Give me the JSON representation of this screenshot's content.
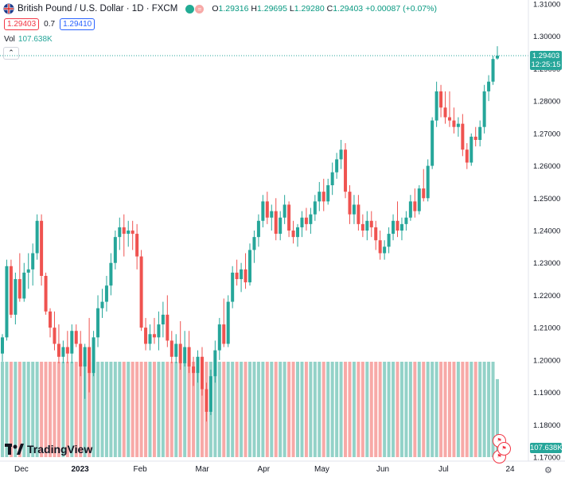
{
  "header": {
    "title": "British Pound / U.S. Dollar · 1D · FXCM",
    "ohlc": {
      "o_label": "O",
      "o": "1.29316",
      "h_label": "H",
      "h": "1.29695",
      "l_label": "L",
      "l": "1.29280",
      "c_label": "C",
      "c": "1.29403",
      "change": "+0.00087 (+0.07%)"
    }
  },
  "trade": {
    "sell_price": "1.29403",
    "spread": "0.7",
    "buy_price": "1.29410"
  },
  "volume": {
    "label": "Vol",
    "value": "107.638K"
  },
  "price_axis": {
    "labels": [
      "1.31000",
      "1.30000",
      "1.29000",
      "1.28000",
      "1.27000",
      "1.26000",
      "1.25000",
      "1.24000",
      "1.23000",
      "1.22000",
      "1.21000",
      "1.20000",
      "1.19000",
      "1.18000",
      "1.17000"
    ],
    "current_price": "1.29403",
    "countdown": "12:25:15",
    "volume_tag": "107.638K"
  },
  "time_axis": {
    "labels": [
      "Dec",
      "2023",
      "Feb",
      "Mar",
      "Apr",
      "May",
      "Jun",
      "Jul",
      "24"
    ]
  },
  "branding": {
    "logo_text": "TradingView"
  },
  "colors": {
    "up": "#26a69a",
    "down": "#ef5350",
    "vol_up": "#93d2c8",
    "vol_down": "#f7a9a7"
  },
  "chart_data": {
    "type": "candlestick",
    "symbol": "British Pound / U.S. Dollar",
    "interval": "1D",
    "ylim": [
      1.17,
      1.31
    ],
    "candles": [
      {
        "o": 1.202,
        "h": 1.208,
        "l": 1.1995,
        "c": 1.207
      },
      {
        "o": 1.207,
        "h": 1.231,
        "l": 1.206,
        "c": 1.229
      },
      {
        "o": 1.229,
        "h": 1.231,
        "l": 1.213,
        "c": 1.214
      },
      {
        "o": 1.214,
        "h": 1.227,
        "l": 1.211,
        "c": 1.225
      },
      {
        "o": 1.225,
        "h": 1.233,
        "l": 1.218,
        "c": 1.219
      },
      {
        "o": 1.219,
        "h": 1.23,
        "l": 1.218,
        "c": 1.227
      },
      {
        "o": 1.227,
        "h": 1.233,
        "l": 1.222,
        "c": 1.228
      },
      {
        "o": 1.228,
        "h": 1.236,
        "l": 1.223,
        "c": 1.233
      },
      {
        "o": 1.233,
        "h": 1.245,
        "l": 1.231,
        "c": 1.243
      },
      {
        "o": 1.243,
        "h": 1.245,
        "l": 1.223,
        "c": 1.226
      },
      {
        "o": 1.226,
        "h": 1.227,
        "l": 1.214,
        "c": 1.215
      },
      {
        "o": 1.215,
        "h": 1.216,
        "l": 1.207,
        "c": 1.21
      },
      {
        "o": 1.21,
        "h": 1.215,
        "l": 1.203,
        "c": 1.205
      },
      {
        "o": 1.205,
        "h": 1.211,
        "l": 1.199,
        "c": 1.201
      },
      {
        "o": 1.201,
        "h": 1.206,
        "l": 1.199,
        "c": 1.204
      },
      {
        "o": 1.204,
        "h": 1.209,
        "l": 1.199,
        "c": 1.202
      },
      {
        "o": 1.202,
        "h": 1.211,
        "l": 1.199,
        "c": 1.209
      },
      {
        "o": 1.209,
        "h": 1.211,
        "l": 1.204,
        "c": 1.205
      },
      {
        "o": 1.205,
        "h": 1.209,
        "l": 1.195,
        "c": 1.198
      },
      {
        "o": 1.198,
        "h": 1.205,
        "l": 1.188,
        "c": 1.204
      },
      {
        "o": 1.204,
        "h": 1.213,
        "l": 1.19,
        "c": 1.196
      },
      {
        "o": 1.196,
        "h": 1.209,
        "l": 1.195,
        "c": 1.207
      },
      {
        "o": 1.207,
        "h": 1.22,
        "l": 1.204,
        "c": 1.216
      },
      {
        "o": 1.216,
        "h": 1.222,
        "l": 1.213,
        "c": 1.218
      },
      {
        "o": 1.218,
        "h": 1.226,
        "l": 1.215,
        "c": 1.223
      },
      {
        "o": 1.223,
        "h": 1.233,
        "l": 1.22,
        "c": 1.23
      },
      {
        "o": 1.23,
        "h": 1.24,
        "l": 1.228,
        "c": 1.238
      },
      {
        "o": 1.238,
        "h": 1.244,
        "l": 1.234,
        "c": 1.241
      },
      {
        "o": 1.241,
        "h": 1.245,
        "l": 1.232,
        "c": 1.239
      },
      {
        "o": 1.239,
        "h": 1.243,
        "l": 1.235,
        "c": 1.24
      },
      {
        "o": 1.24,
        "h": 1.243,
        "l": 1.234,
        "c": 1.239
      },
      {
        "o": 1.239,
        "h": 1.242,
        "l": 1.228,
        "c": 1.232
      },
      {
        "o": 1.232,
        "h": 1.234,
        "l": 1.209,
        "c": 1.21
      },
      {
        "o": 1.21,
        "h": 1.213,
        "l": 1.203,
        "c": 1.205
      },
      {
        "o": 1.205,
        "h": 1.211,
        "l": 1.203,
        "c": 1.208
      },
      {
        "o": 1.208,
        "h": 1.213,
        "l": 1.205,
        "c": 1.207
      },
      {
        "o": 1.207,
        "h": 1.215,
        "l": 1.203,
        "c": 1.211
      },
      {
        "o": 1.211,
        "h": 1.218,
        "l": 1.207,
        "c": 1.214
      },
      {
        "o": 1.214,
        "h": 1.22,
        "l": 1.204,
        "c": 1.206
      },
      {
        "o": 1.206,
        "h": 1.209,
        "l": 1.199,
        "c": 1.201
      },
      {
        "o": 1.201,
        "h": 1.208,
        "l": 1.199,
        "c": 1.205
      },
      {
        "o": 1.205,
        "h": 1.212,
        "l": 1.197,
        "c": 1.199
      },
      {
        "o": 1.199,
        "h": 1.209,
        "l": 1.198,
        "c": 1.204
      },
      {
        "o": 1.204,
        "h": 1.209,
        "l": 1.196,
        "c": 1.198
      },
      {
        "o": 1.198,
        "h": 1.201,
        "l": 1.192,
        "c": 1.196
      },
      {
        "o": 1.196,
        "h": 1.203,
        "l": 1.193,
        "c": 1.201
      },
      {
        "o": 1.201,
        "h": 1.204,
        "l": 1.189,
        "c": 1.191
      },
      {
        "o": 1.191,
        "h": 1.193,
        "l": 1.181,
        "c": 1.184
      },
      {
        "o": 1.184,
        "h": 1.197,
        "l": 1.183,
        "c": 1.195
      },
      {
        "o": 1.195,
        "h": 1.206,
        "l": 1.193,
        "c": 1.203
      },
      {
        "o": 1.203,
        "h": 1.213,
        "l": 1.2,
        "c": 1.211
      },
      {
        "o": 1.211,
        "h": 1.219,
        "l": 1.204,
        "c": 1.205
      },
      {
        "o": 1.205,
        "h": 1.22,
        "l": 1.204,
        "c": 1.218
      },
      {
        "o": 1.218,
        "h": 1.229,
        "l": 1.216,
        "c": 1.227
      },
      {
        "o": 1.227,
        "h": 1.231,
        "l": 1.223,
        "c": 1.225
      },
      {
        "o": 1.225,
        "h": 1.23,
        "l": 1.221,
        "c": 1.228
      },
      {
        "o": 1.228,
        "h": 1.233,
        "l": 1.222,
        "c": 1.224
      },
      {
        "o": 1.224,
        "h": 1.236,
        "l": 1.223,
        "c": 1.234
      },
      {
        "o": 1.234,
        "h": 1.24,
        "l": 1.23,
        "c": 1.238
      },
      {
        "o": 1.238,
        "h": 1.245,
        "l": 1.235,
        "c": 1.243
      },
      {
        "o": 1.243,
        "h": 1.251,
        "l": 1.241,
        "c": 1.249
      },
      {
        "o": 1.249,
        "h": 1.252,
        "l": 1.242,
        "c": 1.244
      },
      {
        "o": 1.244,
        "h": 1.248,
        "l": 1.24,
        "c": 1.246
      },
      {
        "o": 1.246,
        "h": 1.25,
        "l": 1.237,
        "c": 1.239
      },
      {
        "o": 1.239,
        "h": 1.246,
        "l": 1.237,
        "c": 1.244
      },
      {
        "o": 1.244,
        "h": 1.251,
        "l": 1.242,
        "c": 1.248
      },
      {
        "o": 1.248,
        "h": 1.249,
        "l": 1.238,
        "c": 1.24
      },
      {
        "o": 1.24,
        "h": 1.243,
        "l": 1.236,
        "c": 1.238
      },
      {
        "o": 1.238,
        "h": 1.242,
        "l": 1.235,
        "c": 1.241
      },
      {
        "o": 1.241,
        "h": 1.246,
        "l": 1.238,
        "c": 1.244
      },
      {
        "o": 1.244,
        "h": 1.247,
        "l": 1.24,
        "c": 1.242
      },
      {
        "o": 1.242,
        "h": 1.247,
        "l": 1.239,
        "c": 1.245
      },
      {
        "o": 1.245,
        "h": 1.251,
        "l": 1.243,
        "c": 1.249
      },
      {
        "o": 1.249,
        "h": 1.255,
        "l": 1.246,
        "c": 1.252
      },
      {
        "o": 1.252,
        "h": 1.256,
        "l": 1.246,
        "c": 1.249
      },
      {
        "o": 1.249,
        "h": 1.256,
        "l": 1.248,
        "c": 1.254
      },
      {
        "o": 1.254,
        "h": 1.261,
        "l": 1.251,
        "c": 1.258
      },
      {
        "o": 1.258,
        "h": 1.264,
        "l": 1.256,
        "c": 1.262
      },
      {
        "o": 1.262,
        "h": 1.268,
        "l": 1.259,
        "c": 1.265
      },
      {
        "o": 1.265,
        "h": 1.267,
        "l": 1.25,
        "c": 1.252
      },
      {
        "o": 1.252,
        "h": 1.254,
        "l": 1.242,
        "c": 1.245
      },
      {
        "o": 1.245,
        "h": 1.251,
        "l": 1.242,
        "c": 1.248
      },
      {
        "o": 1.248,
        "h": 1.251,
        "l": 1.24,
        "c": 1.242
      },
      {
        "o": 1.242,
        "h": 1.245,
        "l": 1.238,
        "c": 1.24
      },
      {
        "o": 1.24,
        "h": 1.246,
        "l": 1.237,
        "c": 1.243
      },
      {
        "o": 1.243,
        "h": 1.246,
        "l": 1.238,
        "c": 1.241
      },
      {
        "o": 1.241,
        "h": 1.243,
        "l": 1.234,
        "c": 1.237
      },
      {
        "o": 1.237,
        "h": 1.24,
        "l": 1.231,
        "c": 1.233
      },
      {
        "o": 1.233,
        "h": 1.237,
        "l": 1.231,
        "c": 1.235
      },
      {
        "o": 1.235,
        "h": 1.241,
        "l": 1.233,
        "c": 1.239
      },
      {
        "o": 1.239,
        "h": 1.245,
        "l": 1.237,
        "c": 1.243
      },
      {
        "o": 1.243,
        "h": 1.249,
        "l": 1.238,
        "c": 1.24
      },
      {
        "o": 1.24,
        "h": 1.244,
        "l": 1.237,
        "c": 1.242
      },
      {
        "o": 1.242,
        "h": 1.246,
        "l": 1.24,
        "c": 1.244
      },
      {
        "o": 1.244,
        "h": 1.251,
        "l": 1.243,
        "c": 1.249
      },
      {
        "o": 1.249,
        "h": 1.253,
        "l": 1.244,
        "c": 1.246
      },
      {
        "o": 1.246,
        "h": 1.254,
        "l": 1.245,
        "c": 1.253
      },
      {
        "o": 1.253,
        "h": 1.259,
        "l": 1.249,
        "c": 1.25
      },
      {
        "o": 1.25,
        "h": 1.262,
        "l": 1.249,
        "c": 1.26
      },
      {
        "o": 1.26,
        "h": 1.275,
        "l": 1.259,
        "c": 1.274
      },
      {
        "o": 1.274,
        "h": 1.286,
        "l": 1.272,
        "c": 1.283
      },
      {
        "o": 1.283,
        "h": 1.285,
        "l": 1.275,
        "c": 1.278
      },
      {
        "o": 1.278,
        "h": 1.283,
        "l": 1.273,
        "c": 1.275
      },
      {
        "o": 1.275,
        "h": 1.283,
        "l": 1.272,
        "c": 1.274
      },
      {
        "o": 1.274,
        "h": 1.278,
        "l": 1.27,
        "c": 1.272
      },
      {
        "o": 1.272,
        "h": 1.275,
        "l": 1.269,
        "c": 1.273
      },
      {
        "o": 1.273,
        "h": 1.276,
        "l": 1.263,
        "c": 1.265
      },
      {
        "o": 1.265,
        "h": 1.267,
        "l": 1.259,
        "c": 1.261
      },
      {
        "o": 1.261,
        "h": 1.27,
        "l": 1.26,
        "c": 1.269
      },
      {
        "o": 1.269,
        "h": 1.272,
        "l": 1.266,
        "c": 1.268
      },
      {
        "o": 1.268,
        "h": 1.274,
        "l": 1.266,
        "c": 1.272
      },
      {
        "o": 1.272,
        "h": 1.285,
        "l": 1.27,
        "c": 1.283
      },
      {
        "o": 1.283,
        "h": 1.288,
        "l": 1.28,
        "c": 1.286
      },
      {
        "o": 1.286,
        "h": 1.294,
        "l": 1.285,
        "c": 1.293
      },
      {
        "o": 1.29316,
        "h": 1.29695,
        "l": 1.2928,
        "c": 1.29403
      }
    ],
    "volume_unit": "K",
    "volume_last": 107.638
  }
}
